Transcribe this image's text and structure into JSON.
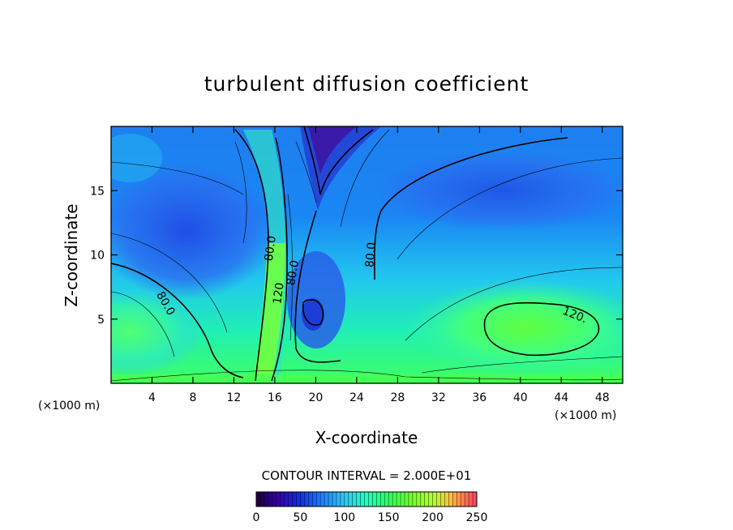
{
  "chart_data": {
    "type": "heatmap",
    "title": "turbulent diffusion coefficient",
    "xlabel": "X-coordinate",
    "ylabel": "Z-coordinate",
    "x_unit_left": "(×1000 m)",
    "x_unit_right": "(×1000 m)",
    "xlim": [
      0,
      50
    ],
    "ylim": [
      0,
      20
    ],
    "xticks": [
      4,
      8,
      12,
      16,
      20,
      24,
      28,
      32,
      36,
      40,
      44,
      48
    ],
    "yticks": [
      5,
      10,
      15
    ],
    "contour_interval_text": "CONTOUR INTERVAL = 2.000E+01",
    "contour_labels": [
      {
        "text": "80.0",
        "x": 15.6,
        "y": 10.5,
        "angle": -82
      },
      {
        "text": "120",
        "x": 16.4,
        "y": 7.0,
        "angle": -82
      },
      {
        "text": "80.0",
        "x": 17.8,
        "y": 8.6,
        "angle": -80
      },
      {
        "text": "80.0",
        "x": 25.4,
        "y": 10.0,
        "angle": -85
      },
      {
        "text": "80.0",
        "x": 5.3,
        "y": 6.2,
        "angle": 60
      },
      {
        "text": "120.",
        "x": 45.3,
        "y": 5.3,
        "angle": 22
      }
    ],
    "colorbar": {
      "min": 0,
      "max": 250,
      "ticks": [
        0,
        50,
        100,
        150,
        200,
        250
      ],
      "colors": [
        "#1a0033",
        "#3300aa",
        "#1030e0",
        "#2080ff",
        "#30c8f0",
        "#20ffc0",
        "#30ff60",
        "#70ff30",
        "#b0ff30",
        "#ffc040",
        "#ff7050",
        "#ff4060"
      ]
    }
  }
}
